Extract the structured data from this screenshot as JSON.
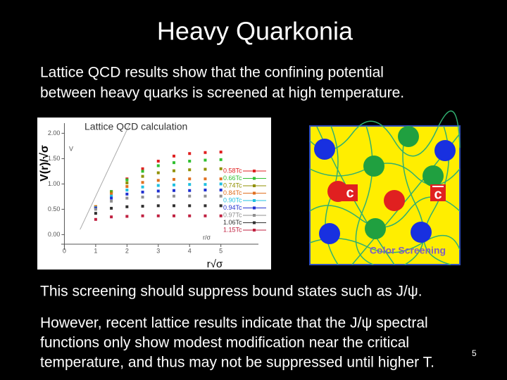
{
  "title": "Heavy Quarkonia",
  "paragraphs": [
    {
      "lines": [
        "Lattice QCD results show that the confining potential",
        "between heavy quarks is screened at high temperature."
      ]
    },
    {
      "lines": [
        "This screening should suppress bound states such as J/ψ."
      ]
    },
    {
      "lines": [
        "However, recent lattice results indicate that the J/ψ spectral",
        "functions only show modest modification near the critical",
        "temperature, and thus may not be suppressed until higher T."
      ]
    }
  ],
  "page_number": "5",
  "chart_data": {
    "type": "scatter",
    "title": "Lattice QCD calculation",
    "y_label": "V(r)/√σ",
    "x_label": "r√σ",
    "inner_y_label": "V",
    "inner_x_label": "r/σ",
    "x": [
      1,
      1.5,
      2,
      2.5,
      3,
      3.5,
      4,
      4.5,
      5
    ],
    "xlim": [
      -0.1,
      6.2
    ],
    "ylim": [
      -0.3,
      2.2
    ],
    "xticks": [
      0,
      1,
      2,
      3,
      4,
      5
    ],
    "yticks": [
      {
        "value": 0,
        "label": "0.00"
      },
      {
        "value": 0.5,
        "label": "0.50"
      },
      {
        "value": 1,
        "label": "1.00"
      },
      {
        "value": 1.5,
        "label": "1.50"
      },
      {
        "value": 2,
        "label": "2.00"
      }
    ],
    "series": [
      {
        "name": "0.58Tc",
        "color": "#e02020",
        "values": [
          0.55,
          0.85,
          1.1,
          1.3,
          1.45,
          1.55,
          1.6,
          1.62,
          1.63
        ]
      },
      {
        "name": "0.66Tc",
        "color": "#30c030",
        "values": [
          0.55,
          0.85,
          1.08,
          1.25,
          1.36,
          1.42,
          1.45,
          1.47,
          1.48
        ]
      },
      {
        "name": "0.74Tc",
        "color": "#909000",
        "values": [
          0.55,
          0.83,
          1.02,
          1.15,
          1.22,
          1.26,
          1.28,
          1.29,
          1.3
        ]
      },
      {
        "name": "0.84Tc",
        "color": "#e07020",
        "values": [
          0.55,
          0.8,
          0.95,
          1.03,
          1.07,
          1.09,
          1.1,
          1.1,
          1.1
        ]
      },
      {
        "name": "0.90Tc",
        "color": "#20c0e0",
        "values": [
          0.53,
          0.76,
          0.88,
          0.94,
          0.97,
          0.98,
          0.99,
          0.99,
          1.0
        ]
      },
      {
        "name": "0.94Tc",
        "color": "#2030d0",
        "values": [
          0.52,
          0.72,
          0.8,
          0.84,
          0.86,
          0.87,
          0.87,
          0.88,
          0.88
        ]
      },
      {
        "name": "0.97Tc",
        "color": "#909090",
        "values": [
          0.5,
          0.66,
          0.72,
          0.74,
          0.75,
          0.76,
          0.76,
          0.76,
          0.76
        ]
      },
      {
        "name": "1.06Tc",
        "color": "#303030",
        "values": [
          0.42,
          0.52,
          0.55,
          0.56,
          0.57,
          0.57,
          0.57,
          0.57,
          0.57
        ]
      },
      {
        "name": "1.15Tc",
        "color": "#c02040",
        "values": [
          0.3,
          0.35,
          0.36,
          0.37,
          0.37,
          0.37,
          0.37,
          0.37,
          0.37
        ]
      }
    ]
  },
  "diagram": {
    "quark": "c",
    "antiquark": "c",
    "caption": "Color Screening"
  }
}
